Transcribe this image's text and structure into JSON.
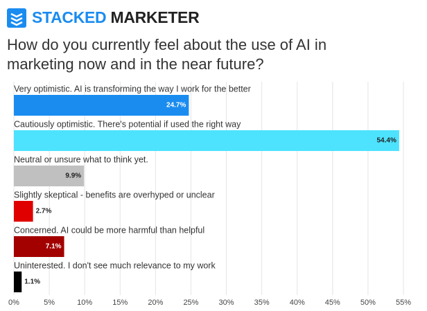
{
  "header": {
    "brand_primary": "STACKED",
    "brand_secondary": "MARKETER"
  },
  "chart_data": {
    "type": "barh",
    "title": "How do you currently feel about the use of AI in marketing now and in the near future?",
    "categories": [
      "Very optimistic. AI is transforming the way I work for the better",
      "Cautiously optimistic. There's potential if used the right way",
      "Neutral or unsure what to think yet.",
      "Slightly skeptical - benefits are overhyped or unclear",
      "Concerned. AI could be more harmful than helpful",
      "Uninterested. I don't see much relevance to my work"
    ],
    "values": [
      24.7,
      54.4,
      9.9,
      2.7,
      7.1,
      1.1
    ],
    "value_labels": [
      "24.7%",
      "54.4%",
      "9.9%",
      "2.7%",
      "7.1%",
      "1.1%"
    ],
    "colors": [
      "#1a8cf0",
      "#4de3ff",
      "#c0c0c0",
      "#e00000",
      "#a30000",
      "#000000"
    ],
    "xlim": [
      0,
      55
    ],
    "xticks": [
      {
        "value": 0,
        "label": "0%"
      },
      {
        "value": 5,
        "label": "5%"
      },
      {
        "value": 10,
        "label": "10%"
      },
      {
        "value": 15,
        "label": "15%"
      },
      {
        "value": 20,
        "label": "20%"
      },
      {
        "value": 25,
        "label": "25%"
      },
      {
        "value": 30,
        "label": "30%"
      },
      {
        "value": 35,
        "label": "35%"
      },
      {
        "value": 40,
        "label": "40%"
      },
      {
        "value": 45,
        "label": "45%"
      },
      {
        "value": 50,
        "label": "50%"
      },
      {
        "value": 55,
        "label": "55%"
      }
    ],
    "grid": true
  }
}
